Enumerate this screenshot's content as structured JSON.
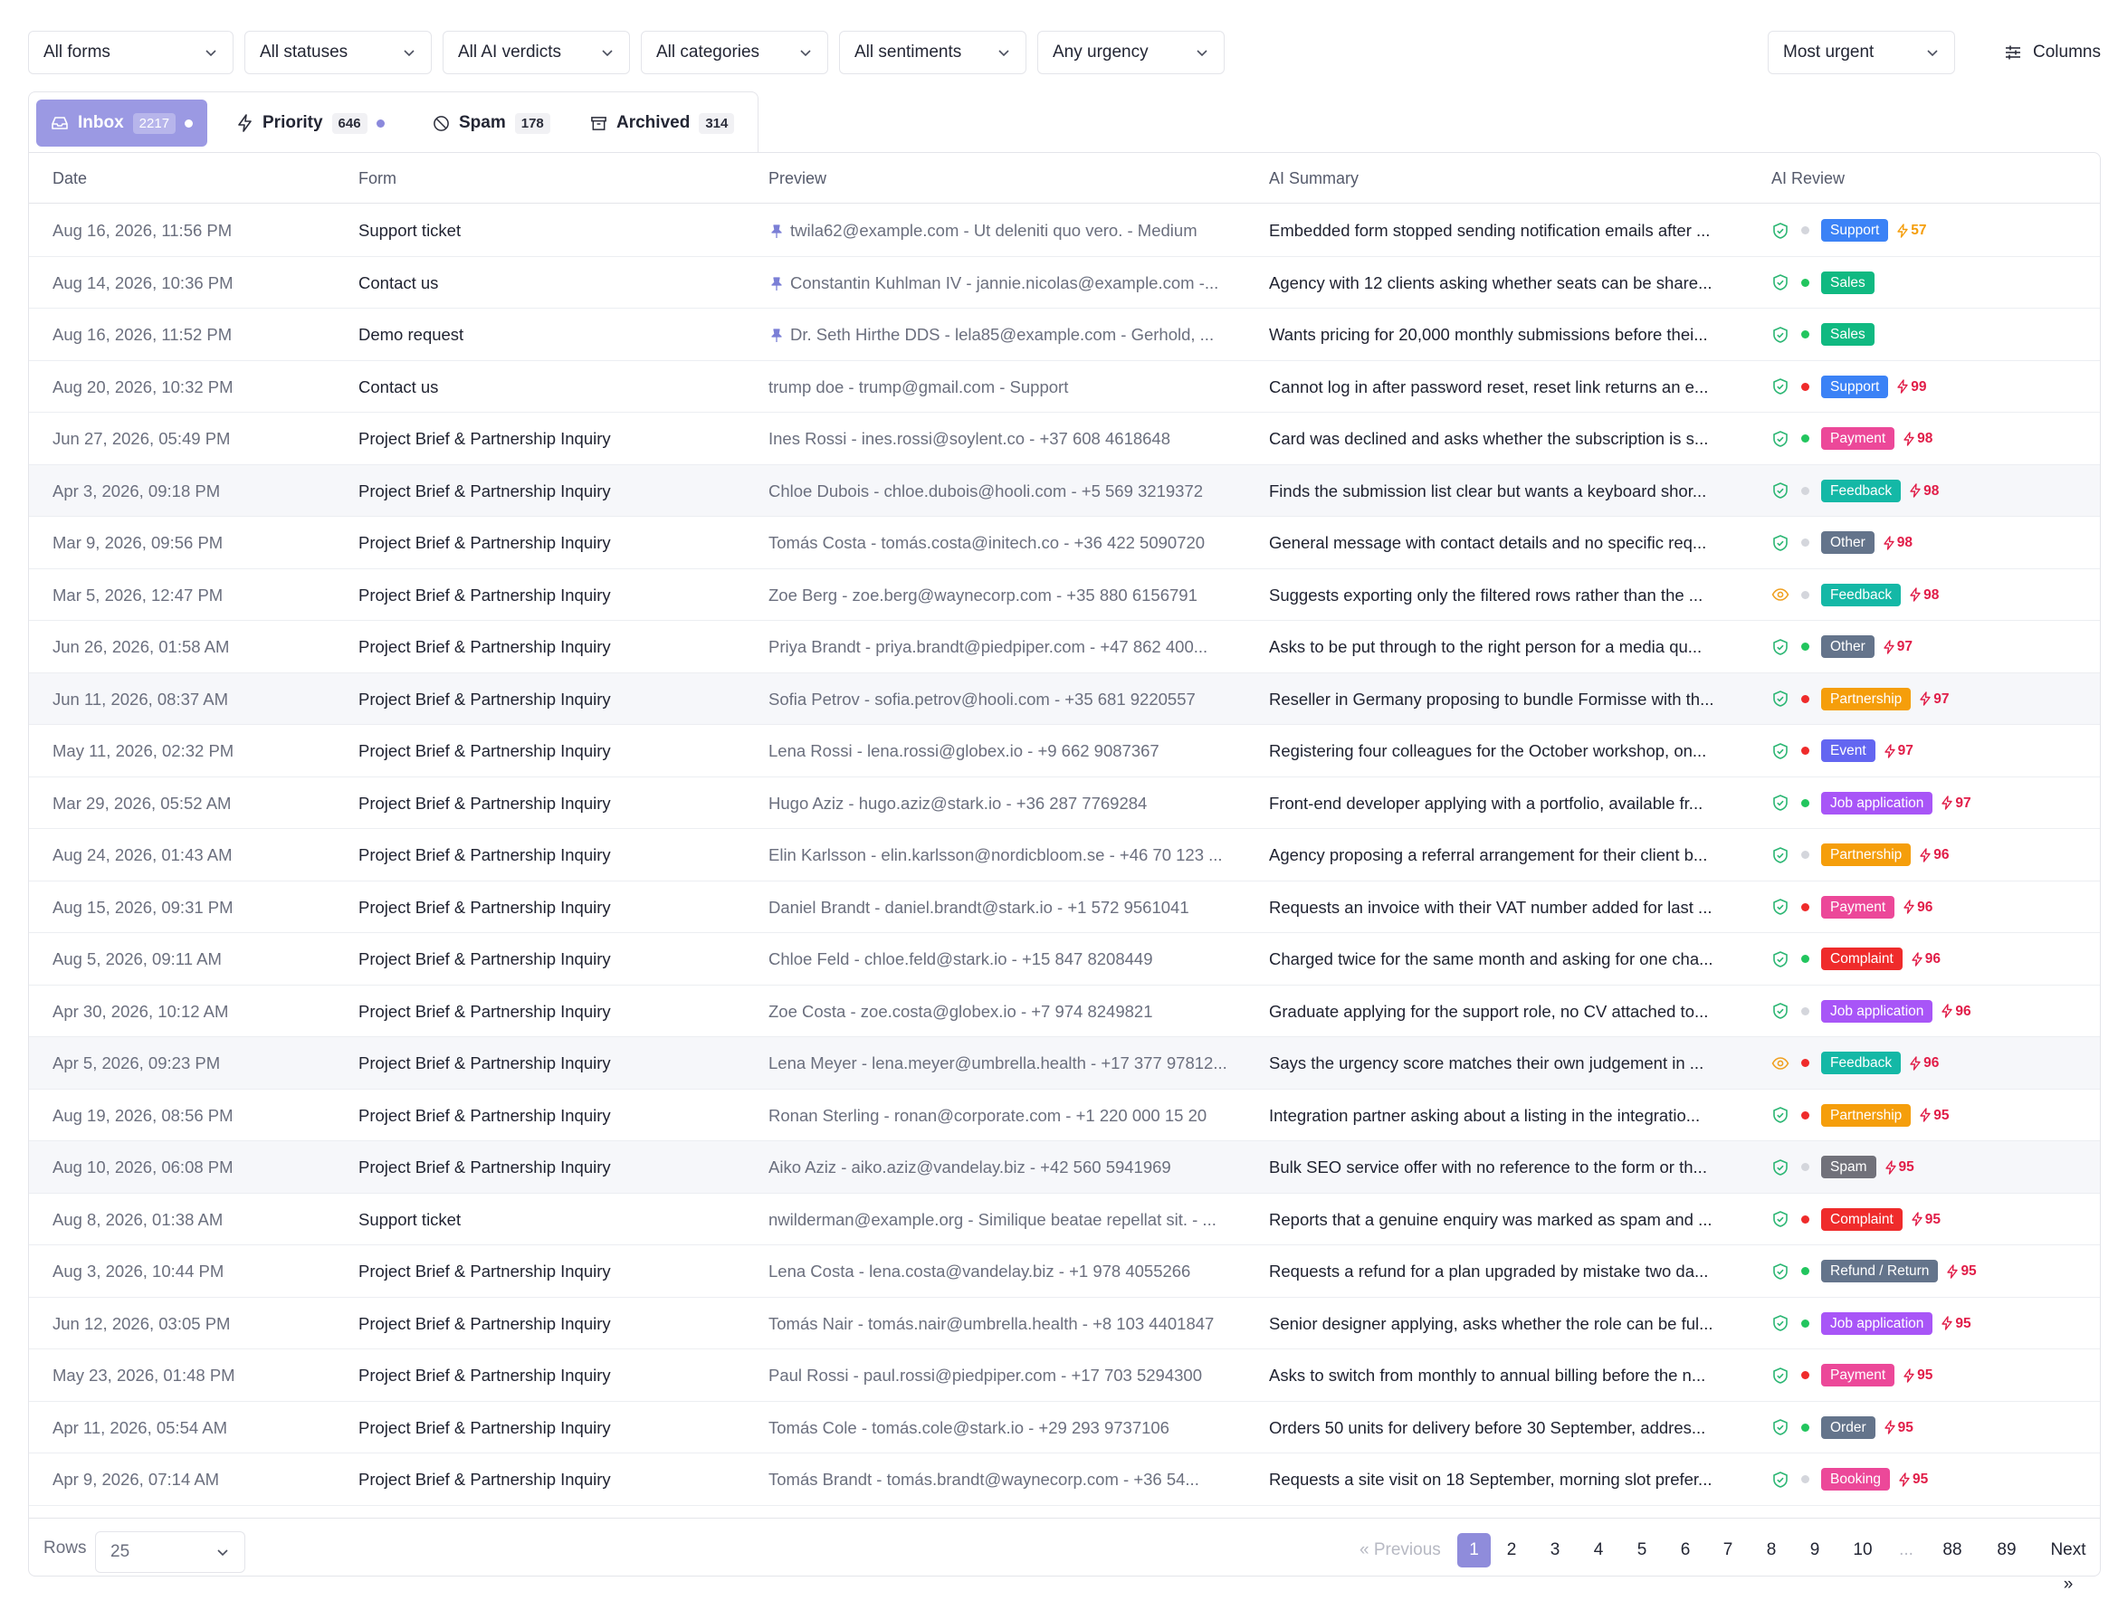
{
  "filters": {
    "form": "All forms",
    "status": "All statuses",
    "ai_verdict": "All AI verdicts",
    "category": "All categories",
    "sentiment": "All sentiments",
    "urgency": "Any urgency",
    "sort": "Most urgent",
    "columns_label": "Columns"
  },
  "tabs": [
    {
      "label": "Inbox",
      "count": "2217",
      "active": true,
      "dot": true
    },
    {
      "label": "Priority",
      "count": "646",
      "active": false,
      "dot": true
    },
    {
      "label": "Spam",
      "count": "178",
      "active": false,
      "dot": false
    },
    {
      "label": "Archived",
      "count": "314",
      "active": false,
      "dot": false
    }
  ],
  "columns": {
    "date": "Date",
    "form": "Form",
    "preview": "Preview",
    "summary": "AI Summary",
    "review": "AI Review"
  },
  "colors": {
    "accent": "#8f8cdb",
    "shield_ok": "#2bb673",
    "eye_warn": "#f0a020",
    "dot_green": "#22c55e",
    "dot_red": "#ef2b2b",
    "dot_gray": "#d4d6dc",
    "score_orange": "#f59e0b",
    "score_red": "#e11d48",
    "badges": {
      "Support": "#3b82f6",
      "Sales": "#10b981",
      "Payment": "#ec4899",
      "Feedback": "#14b8a6",
      "Other": "#64748b",
      "Partnership": "#f59e0b",
      "Event": "#6366f1",
      "Job application": "#a855f7",
      "Complaint": "#ef2b2b",
      "Spam": "#71717a",
      "Refund / Return": "#64748b",
      "Order": "#64748b",
      "Booking": "#ec4899"
    }
  },
  "rows": [
    {
      "date": "Aug 16, 2026, 11:56 PM",
      "form": "Support ticket",
      "pinned": true,
      "preview": "twila62@example.com - Ut deleniti quo vero. - Medium",
      "summary": "Embedded form stopped sending notification emails after ...",
      "verdict": "ok",
      "sentiment": "gray",
      "category": "Support",
      "score": "57",
      "score_level": "orange"
    },
    {
      "date": "Aug 14, 2026, 10:36 PM",
      "form": "Contact us",
      "pinned": true,
      "preview": "Constantin Kuhlman IV - jannie.nicolas@example.com -...",
      "summary": "Agency with 12 clients asking whether seats can be share...",
      "verdict": "ok",
      "sentiment": "green",
      "category": "Sales",
      "score": "",
      "score_level": ""
    },
    {
      "date": "Aug 16, 2026, 11:52 PM",
      "form": "Demo request",
      "pinned": true,
      "preview": "Dr. Seth Hirthe DDS - lela85@example.com - Gerhold, ...",
      "summary": "Wants pricing for 20,000 monthly submissions before thei...",
      "verdict": "ok",
      "sentiment": "green",
      "category": "Sales",
      "score": "",
      "score_level": ""
    },
    {
      "date": "Aug 20, 2026, 10:32 PM",
      "form": "Contact us",
      "pinned": false,
      "preview": "trump doe - trump@gmail.com - Support",
      "summary": "Cannot log in after password reset, reset link returns an e...",
      "verdict": "ok",
      "sentiment": "red",
      "category": "Support",
      "score": "99",
      "score_level": "red"
    },
    {
      "date": "Jun 27, 2026, 05:49 PM",
      "form": "Project Brief & Partnership Inquiry",
      "pinned": false,
      "preview": "Ines Rossi - ines.rossi@soylent.co - +37 608 4618648",
      "summary": "Card was declined and asks whether the subscription is s...",
      "verdict": "ok",
      "sentiment": "green",
      "category": "Payment",
      "score": "98",
      "score_level": "red"
    },
    {
      "date": "Apr 3, 2026, 09:18 PM",
      "form": "Project Brief & Partnership Inquiry",
      "pinned": false,
      "preview": "Chloe Dubois - chloe.dubois@hooli.com - +5 569 3219372",
      "summary": "Finds the submission list clear but wants a keyboard shor...",
      "verdict": "ok",
      "sentiment": "gray",
      "category": "Feedback",
      "score": "98",
      "score_level": "red"
    },
    {
      "date": "Mar 9, 2026, 09:56 PM",
      "form": "Project Brief & Partnership Inquiry",
      "pinned": false,
      "preview": "Tomás Costa - tomás.costa@initech.co - +36 422 5090720",
      "summary": "General message with contact details and no specific req...",
      "verdict": "ok",
      "sentiment": "gray",
      "category": "Other",
      "score": "98",
      "score_level": "red"
    },
    {
      "date": "Mar 5, 2026, 12:47 PM",
      "form": "Project Brief & Partnership Inquiry",
      "pinned": false,
      "preview": "Zoe Berg - zoe.berg@waynecorp.com - +35 880 6156791",
      "summary": "Suggests exporting only the filtered rows rather than the ...",
      "verdict": "warn",
      "sentiment": "gray",
      "category": "Feedback",
      "score": "98",
      "score_level": "red"
    },
    {
      "date": "Jun 26, 2026, 01:58 AM",
      "form": "Project Brief & Partnership Inquiry",
      "pinned": false,
      "preview": "Priya Brandt - priya.brandt@piedpiper.com - +47 862 400...",
      "summary": "Asks to be put through to the right person for a media qu...",
      "verdict": "ok",
      "sentiment": "green",
      "category": "Other",
      "score": "97",
      "score_level": "red"
    },
    {
      "date": "Jun 11, 2026, 08:37 AM",
      "form": "Project Brief & Partnership Inquiry",
      "pinned": false,
      "preview": "Sofia Petrov - sofia.petrov@hooli.com - +35 681 9220557",
      "summary": "Reseller in Germany proposing to bundle Formisse with th...",
      "verdict": "ok",
      "sentiment": "red",
      "category": "Partnership",
      "score": "97",
      "score_level": "red"
    },
    {
      "date": "May 11, 2026, 02:32 PM",
      "form": "Project Brief & Partnership Inquiry",
      "pinned": false,
      "preview": "Lena Rossi - lena.rossi@globex.io - +9 662 9087367",
      "summary": "Registering four colleagues for the October workshop, on...",
      "verdict": "ok",
      "sentiment": "red",
      "category": "Event",
      "score": "97",
      "score_level": "red"
    },
    {
      "date": "Mar 29, 2026, 05:52 AM",
      "form": "Project Brief & Partnership Inquiry",
      "pinned": false,
      "preview": "Hugo Aziz - hugo.aziz@stark.io - +36 287 7769284",
      "summary": "Front-end developer applying with a portfolio, available fr...",
      "verdict": "ok",
      "sentiment": "green",
      "category": "Job application",
      "score": "97",
      "score_level": "red"
    },
    {
      "date": "Aug 24, 2026, 01:43 AM",
      "form": "Project Brief & Partnership Inquiry",
      "pinned": false,
      "preview": "Elin Karlsson - elin.karlsson@nordicbloom.se - +46 70 123 ...",
      "summary": "Agency proposing a referral arrangement for their client b...",
      "verdict": "ok",
      "sentiment": "gray",
      "category": "Partnership",
      "score": "96",
      "score_level": "red"
    },
    {
      "date": "Aug 15, 2026, 09:31 PM",
      "form": "Project Brief & Partnership Inquiry",
      "pinned": false,
      "preview": "Daniel Brandt - daniel.brandt@stark.io - +1 572 9561041",
      "summary": "Requests an invoice with their VAT number added for last ...",
      "verdict": "ok",
      "sentiment": "red",
      "category": "Payment",
      "score": "96",
      "score_level": "red"
    },
    {
      "date": "Aug 5, 2026, 09:11 AM",
      "form": "Project Brief & Partnership Inquiry",
      "pinned": false,
      "preview": "Chloe Feld - chloe.feld@stark.io - +15 847 8208449",
      "summary": "Charged twice for the same month and asking for one cha...",
      "verdict": "ok",
      "sentiment": "green",
      "category": "Complaint",
      "score": "96",
      "score_level": "red"
    },
    {
      "date": "Apr 30, 2026, 10:12 AM",
      "form": "Project Brief & Partnership Inquiry",
      "pinned": false,
      "preview": "Zoe Costa - zoe.costa@globex.io - +7 974 8249821",
      "summary": "Graduate applying for the support role, no CV attached to...",
      "verdict": "ok",
      "sentiment": "gray",
      "category": "Job application",
      "score": "96",
      "score_level": "red"
    },
    {
      "date": "Apr 5, 2026, 09:23 PM",
      "form": "Project Brief & Partnership Inquiry",
      "pinned": false,
      "preview": "Lena Meyer - lena.meyer@umbrella.health - +17 377 97812...",
      "summary": "Says the urgency score matches their own judgement in ...",
      "verdict": "warn",
      "sentiment": "red",
      "category": "Feedback",
      "score": "96",
      "score_level": "red"
    },
    {
      "date": "Aug 19, 2026, 08:56 PM",
      "form": "Project Brief & Partnership Inquiry",
      "pinned": false,
      "preview": "Ronan Sterling - ronan@corporate.com - +1 220 000 15 20",
      "summary": "Integration partner asking about a listing in the integratio...",
      "verdict": "ok",
      "sentiment": "red",
      "category": "Partnership",
      "score": "95",
      "score_level": "red"
    },
    {
      "date": "Aug 10, 2026, 06:08 PM",
      "form": "Project Brief & Partnership Inquiry",
      "pinned": false,
      "preview": "Aiko Aziz - aiko.aziz@vandelay.biz - +42 560 5941969",
      "summary": "Bulk SEO service offer with no reference to the form or th...",
      "verdict": "ok",
      "sentiment": "gray",
      "category": "Spam",
      "score": "95",
      "score_level": "red"
    },
    {
      "date": "Aug 8, 2026, 01:38 AM",
      "form": "Support ticket",
      "pinned": false,
      "preview": "nwilderman@example.org - Similique beatae repellat sit. - ...",
      "summary": "Reports that a genuine enquiry was marked as spam and ...",
      "verdict": "ok",
      "sentiment": "red",
      "category": "Complaint",
      "score": "95",
      "score_level": "red"
    },
    {
      "date": "Aug 3, 2026, 10:44 PM",
      "form": "Project Brief & Partnership Inquiry",
      "pinned": false,
      "preview": "Lena Costa - lena.costa@vandelay.biz - +1 978 4055266",
      "summary": "Requests a refund for a plan upgraded by mistake two da...",
      "verdict": "ok",
      "sentiment": "green",
      "category": "Refund / Return",
      "score": "95",
      "score_level": "red"
    },
    {
      "date": "Jun 12, 2026, 03:05 PM",
      "form": "Project Brief & Partnership Inquiry",
      "pinned": false,
      "preview": "Tomás Nair - tomás.nair@umbrella.health - +8 103 4401847",
      "summary": "Senior designer applying, asks whether the role can be ful...",
      "verdict": "ok",
      "sentiment": "green",
      "category": "Job application",
      "score": "95",
      "score_level": "red"
    },
    {
      "date": "May 23, 2026, 01:48 PM",
      "form": "Project Brief & Partnership Inquiry",
      "pinned": false,
      "preview": "Paul Rossi - paul.rossi@piedpiper.com - +17 703 5294300",
      "summary": "Asks to switch from monthly to annual billing before the n...",
      "verdict": "ok",
      "sentiment": "red",
      "category": "Payment",
      "score": "95",
      "score_level": "red"
    },
    {
      "date": "Apr 11, 2026, 05:54 AM",
      "form": "Project Brief & Partnership Inquiry",
      "pinned": false,
      "preview": "Tomás Cole - tomás.cole@stark.io - +29 293 9737106",
      "summary": "Orders 50 units for delivery before 30 September, addres...",
      "verdict": "ok",
      "sentiment": "green",
      "category": "Order",
      "score": "95",
      "score_level": "red"
    },
    {
      "date": "Apr 9, 2026, 07:14 AM",
      "form": "Project Brief & Partnership Inquiry",
      "pinned": false,
      "preview": "Tomás Brandt - tomás.brandt@waynecorp.com - +36 54...",
      "summary": "Requests a site visit on 18 September, morning slot prefer...",
      "verdict": "ok",
      "sentiment": "gray",
      "category": "Booking",
      "score": "95",
      "score_level": "red"
    }
  ],
  "footer": {
    "rows_label": "Rows",
    "rows_value": "25",
    "previous": "« Previous",
    "next": "Next »",
    "pages": [
      "1",
      "2",
      "3",
      "4",
      "5",
      "6",
      "7",
      "8",
      "9",
      "10",
      "...",
      "88",
      "89"
    ],
    "current_page": "1"
  }
}
